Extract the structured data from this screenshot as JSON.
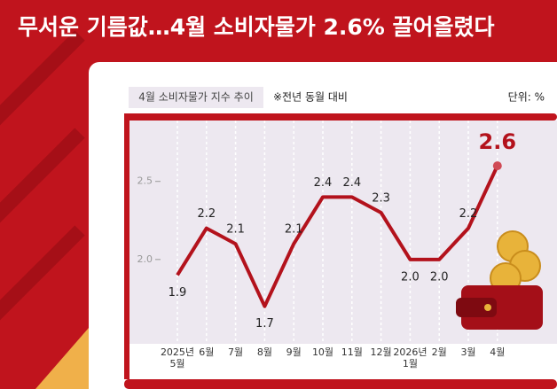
{
  "chart_data": {
    "type": "line",
    "title": "무서운 기름값…4월 소비자물가 2.6% 끌어올렸다",
    "subtitle": "4월 소비자물가 지수 추이",
    "note": "※전년 동월 대비",
    "unit_label": "단위: %",
    "categories": [
      "2025년\n5월",
      "6월",
      "7월",
      "8월",
      "9월",
      "10월",
      "11월",
      "12월",
      "2026년\n1월",
      "2월",
      "3월",
      "4월"
    ],
    "values": [
      1.9,
      2.2,
      2.1,
      1.7,
      2.1,
      2.4,
      2.4,
      2.3,
      2.0,
      2.0,
      2.2,
      2.6
    ],
    "value_labels": [
      "1.9",
      "2.2",
      "2.1",
      "1.7",
      "2.1",
      "2.4",
      "2.4",
      "2.3",
      "2.0",
      "2.0",
      "2.2",
      "2.6"
    ],
    "color": "#b3121c",
    "ylim": [
      1.46,
      2.89
    ],
    "yticks": [
      {
        "value": 2,
        "label": "2.0"
      },
      2.5
    ]
  }
}
